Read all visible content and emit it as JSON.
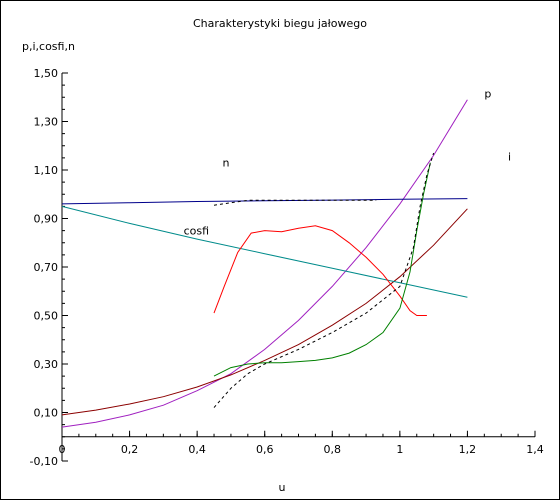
{
  "chart_data": {
    "type": "line",
    "title": "Charakterystyki biegu jałowego",
    "xlabel": "u",
    "ylabel": "p,i,cosfi,n",
    "xlim": [
      0,
      1.4
    ],
    "ylim": [
      -0.1,
      1.5
    ],
    "xticks": [
      0,
      0.2,
      0.4,
      0.6,
      0.8,
      1,
      1.2,
      1.4
    ],
    "xtick_labels": [
      "0",
      "0,2",
      "0,4",
      "0,6",
      "0,8",
      "1",
      "1,2",
      "1,4"
    ],
    "yticks": [
      -0.1,
      0.1,
      0.3,
      0.5,
      0.7,
      0.9,
      1.1,
      1.3,
      1.5
    ],
    "ytick_labels": [
      "-0,10",
      "0,10",
      "0,30",
      "0,50",
      "0,70",
      "0,90",
      "1,10",
      "1,30",
      "1,50"
    ],
    "annotations": [
      {
        "text": "p",
        "x": 1.25,
        "y": 1.4
      },
      {
        "text": "i",
        "x": 1.32,
        "y": 1.14
      },
      {
        "text": "n",
        "x": 0.475,
        "y": 1.115
      },
      {
        "text": "cosfi",
        "x": 0.36,
        "y": 0.835
      }
    ],
    "series": [
      {
        "name": "p",
        "color": "#a020c0",
        "dashed": false,
        "x": [
          0,
          0.1,
          0.2,
          0.3,
          0.4,
          0.5,
          0.6,
          0.7,
          0.8,
          0.9,
          1.0,
          1.1,
          1.2
        ],
        "y": [
          0.04,
          0.06,
          0.09,
          0.13,
          0.19,
          0.26,
          0.36,
          0.48,
          0.62,
          0.78,
          0.96,
          1.16,
          1.39
        ]
      },
      {
        "name": "i",
        "color": "#8b0000",
        "dashed": false,
        "x": [
          0,
          0.1,
          0.2,
          0.3,
          0.4,
          0.5,
          0.6,
          0.7,
          0.8,
          0.9,
          1.0,
          1.1,
          1.2
        ],
        "y": [
          0.09,
          0.11,
          0.135,
          0.165,
          0.205,
          0.255,
          0.315,
          0.38,
          0.46,
          0.55,
          0.66,
          0.79,
          0.94
        ]
      },
      {
        "name": "n",
        "color": "#00008b",
        "dashed": false,
        "x": [
          0,
          0.2,
          0.4,
          0.6,
          0.8,
          1.0,
          1.2
        ],
        "y": [
          0.96,
          0.965,
          0.97,
          0.973,
          0.976,
          0.979,
          0.982
        ]
      },
      {
        "name": "cosfi",
        "color": "#008b8b",
        "dashed": false,
        "x": [
          0,
          0.2,
          0.4,
          0.6,
          0.8,
          1.0,
          1.2
        ],
        "y": [
          0.95,
          0.88,
          0.815,
          0.755,
          0.695,
          0.635,
          0.575
        ]
      },
      {
        "name": "",
        "color": "#ff0000",
        "dashed": false,
        "x": [
          0.45,
          0.48,
          0.52,
          0.56,
          0.6,
          0.65,
          0.7,
          0.75,
          0.8,
          0.85,
          0.9,
          0.95,
          1.0,
          1.03,
          1.05,
          1.08
        ],
        "y": [
          0.51,
          0.62,
          0.76,
          0.84,
          0.85,
          0.845,
          0.86,
          0.87,
          0.85,
          0.8,
          0.74,
          0.67,
          0.58,
          0.52,
          0.5,
          0.5
        ]
      },
      {
        "name": "",
        "color": "#008000",
        "dashed": false,
        "x": [
          0.45,
          0.5,
          0.55,
          0.6,
          0.65,
          0.7,
          0.75,
          0.8,
          0.85,
          0.9,
          0.95,
          1.0,
          1.03,
          1.05,
          1.07,
          1.09
        ],
        "y": [
          0.25,
          0.285,
          0.3,
          0.305,
          0.305,
          0.31,
          0.315,
          0.325,
          0.345,
          0.38,
          0.43,
          0.53,
          0.68,
          0.85,
          1.0,
          1.13
        ]
      },
      {
        "name": "",
        "color": "#000000",
        "dashed": true,
        "x": [
          0.45,
          0.5,
          0.55,
          0.6,
          0.7,
          0.8,
          0.9,
          1.0,
          1.04,
          1.06,
          1.08,
          1.1
        ],
        "y": [
          0.12,
          0.2,
          0.26,
          0.3,
          0.36,
          0.43,
          0.51,
          0.62,
          0.78,
          0.95,
          1.08,
          1.17
        ]
      },
      {
        "name": "",
        "color": "#000000",
        "dashed": true,
        "x": [
          0.45,
          0.55,
          0.65,
          0.75,
          0.85,
          0.93
        ],
        "y": [
          0.955,
          0.975,
          0.975,
          0.975,
          0.975,
          0.975
        ]
      }
    ]
  }
}
